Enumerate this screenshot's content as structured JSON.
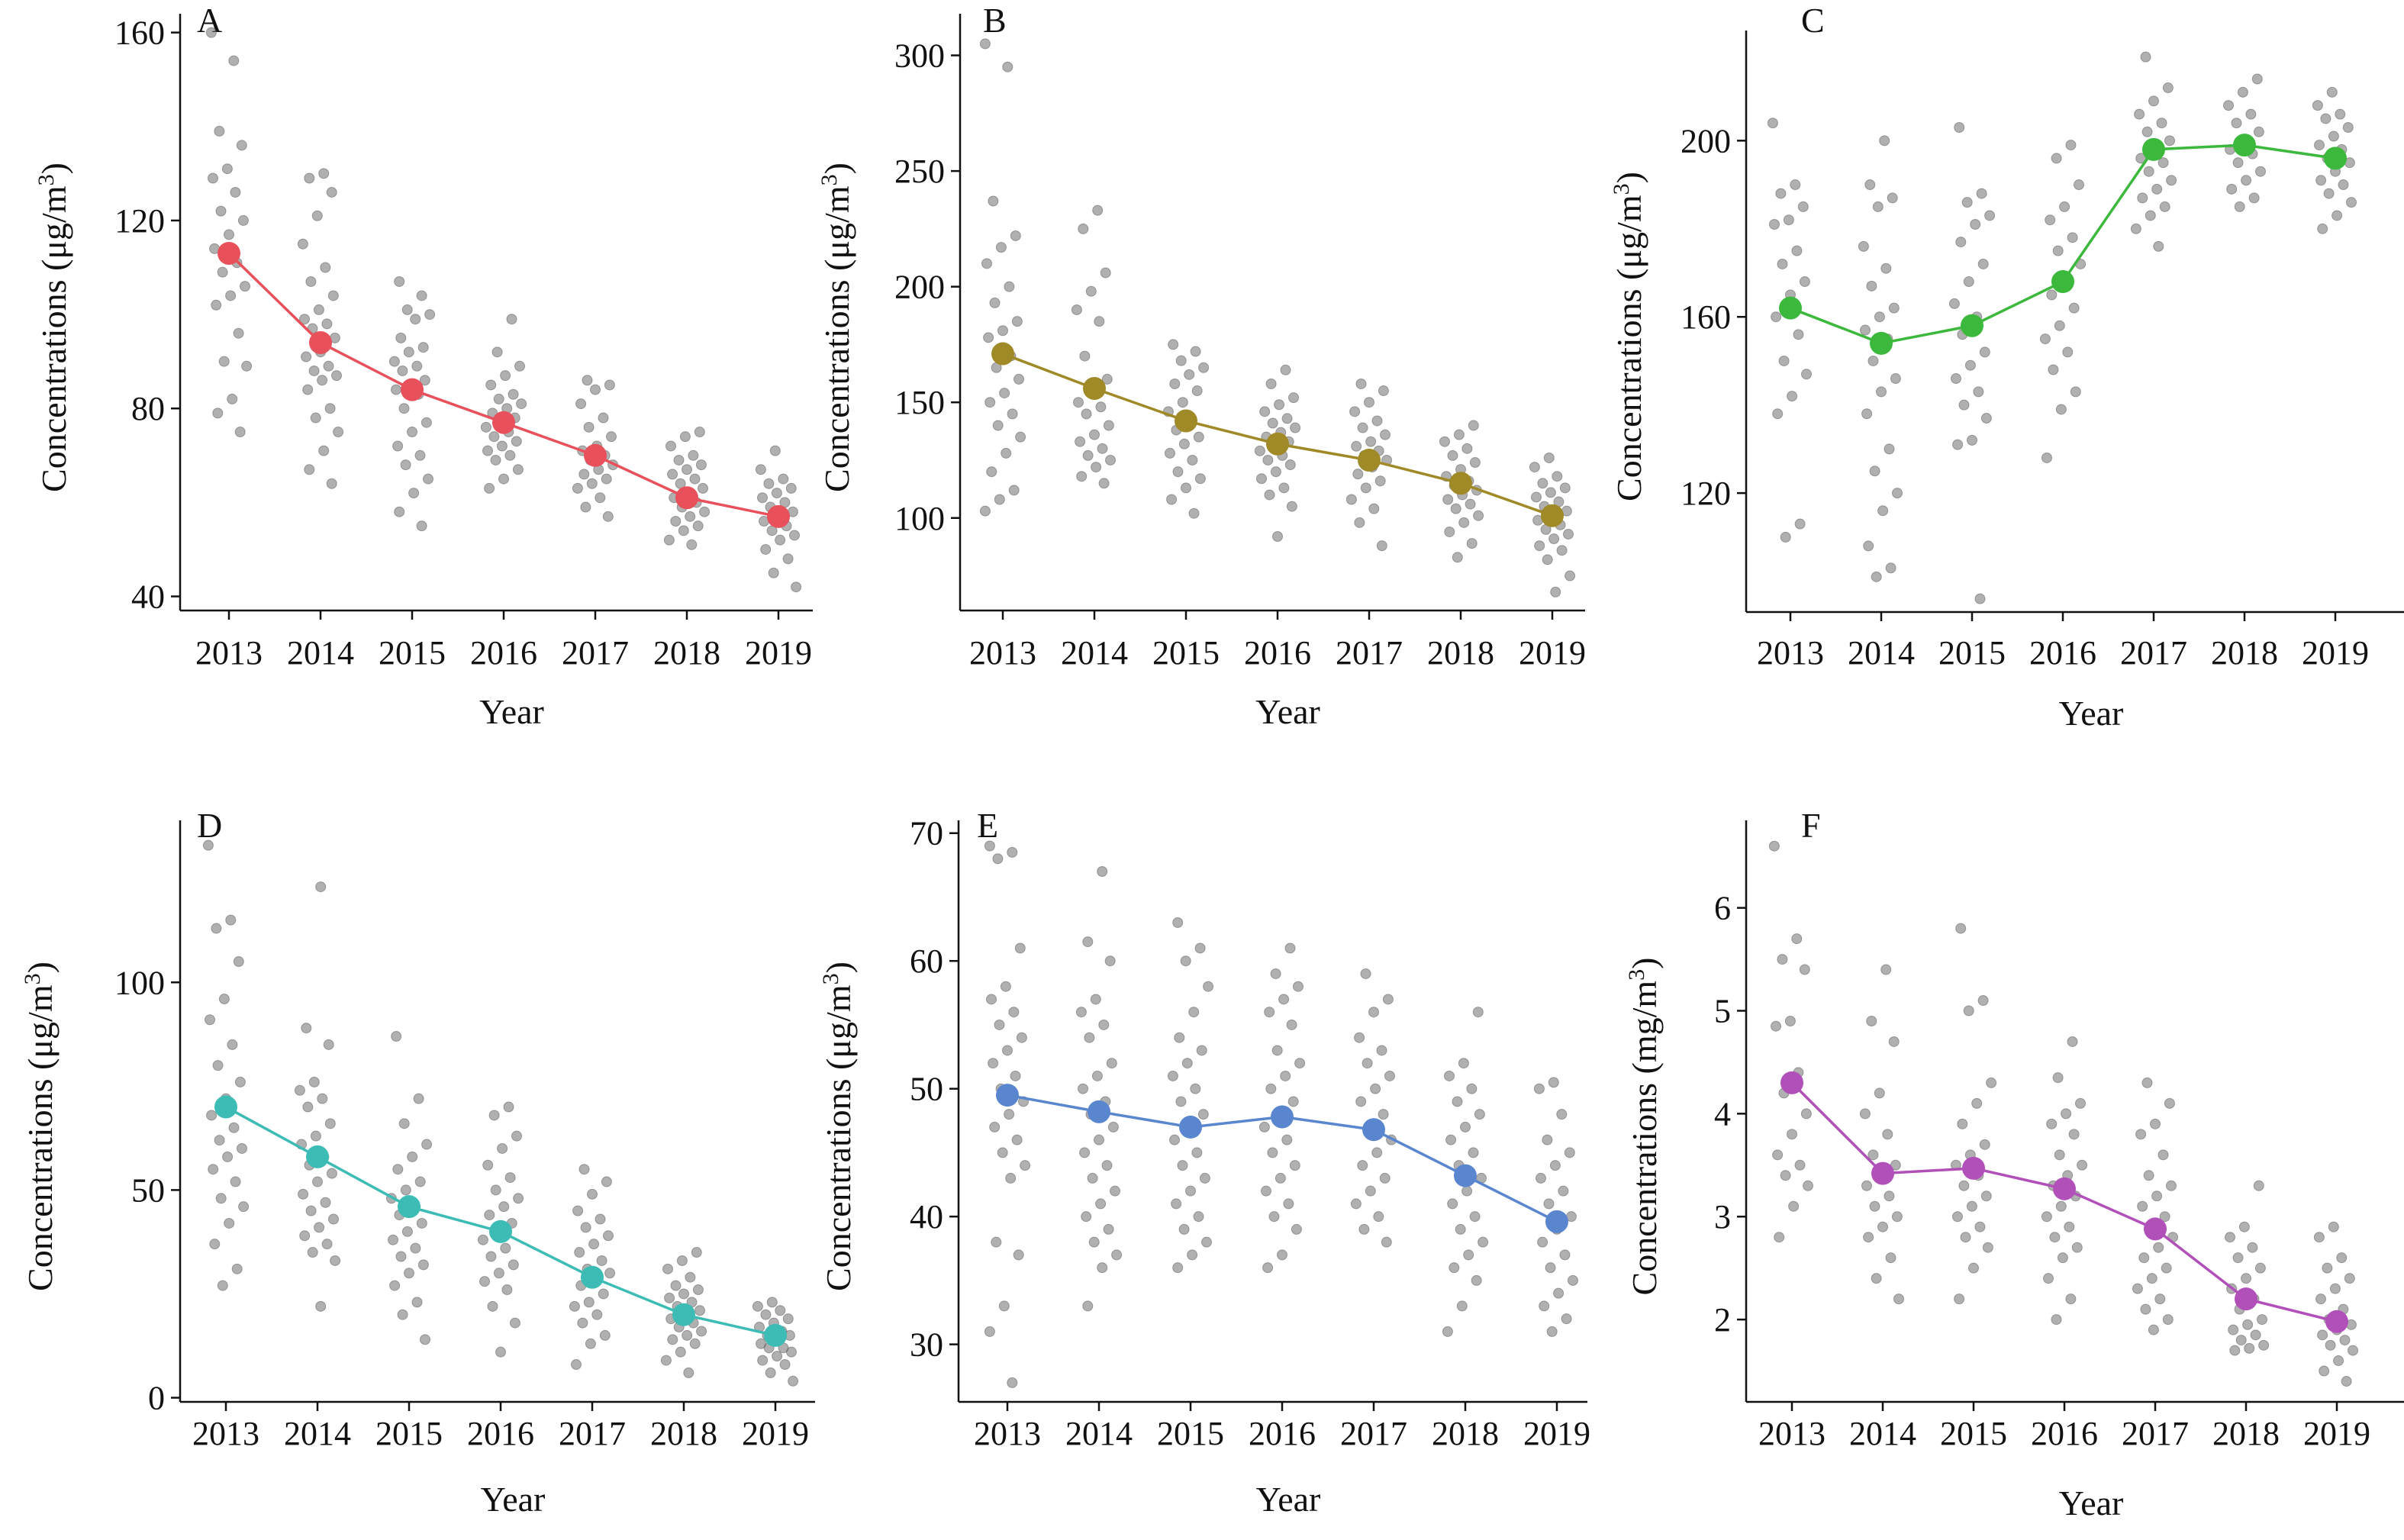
{
  "chart_data": [
    {
      "type": "scatter",
      "panel_label": "A",
      "xlabel": "Year",
      "ylabel": "Concentrations (μg/m",
      "ylabel_sup": "3",
      "ylabel_tail": ")",
      "ylim": [
        37,
        164
      ],
      "yticks": [
        40,
        80,
        120,
        160
      ],
      "x": [
        "2013",
        "2014",
        "2015",
        "2016",
        "2017",
        "2018",
        "2019"
      ],
      "color": "#e8505b",
      "series": [
        {
          "values": [
            113,
            94,
            84,
            77,
            70,
            61,
            57
          ]
        }
      ],
      "points": [
        [
          160,
          154,
          139,
          136,
          131,
          129,
          126,
          122,
          120,
          117,
          114,
          111,
          109,
          106,
          104,
          102,
          96,
          90,
          89,
          82,
          79,
          75
        ],
        [
          130,
          129,
          126,
          121,
          115,
          110,
          107,
          104,
          101,
          99,
          98,
          97,
          95,
          92,
          91,
          89,
          88,
          87,
          86,
          84,
          80,
          78,
          75,
          71,
          67,
          64
        ],
        [
          107,
          104,
          101,
          100,
          99,
          95,
          93,
          92,
          90,
          89,
          88,
          86,
          85,
          84,
          83,
          80,
          77,
          75,
          72,
          70,
          68,
          65,
          62,
          58,
          55
        ],
        [
          99,
          92,
          89,
          87,
          85,
          83,
          82,
          81,
          80,
          79,
          78,
          77,
          76,
          75,
          74,
          73,
          72,
          71,
          70,
          69,
          67,
          65,
          63
        ],
        [
          86,
          85,
          84,
          81,
          78,
          76,
          74,
          72,
          71,
          70,
          69,
          68,
          67,
          66,
          65,
          64,
          63,
          61,
          59,
          57
        ],
        [
          75,
          74,
          72,
          70,
          69,
          68,
          67,
          66,
          65,
          64,
          63,
          62,
          61,
          60,
          59,
          58,
          57,
          56,
          55,
          54,
          52,
          51
        ],
        [
          71,
          67,
          65,
          64,
          63,
          62,
          61,
          60,
          59,
          58,
          57,
          56,
          55,
          54,
          53,
          52,
          50,
          48,
          45,
          42
        ]
      ]
    },
    {
      "type": "scatter",
      "panel_label": "B",
      "xlabel": "Year",
      "ylabel": "Concentrations (μg/m",
      "ylabel_sup": "3",
      "ylabel_tail": ")",
      "ylim": [
        60,
        318
      ],
      "yticks": [
        100,
        150,
        200,
        250,
        300
      ],
      "x": [
        "2013",
        "2014",
        "2015",
        "2016",
        "2017",
        "2018",
        "2019"
      ],
      "color": "#a08a28",
      "series": [
        {
          "values": [
            171,
            156,
            142,
            132,
            125,
            115,
            101
          ]
        }
      ],
      "points": [
        [
          305,
          295,
          237,
          222,
          217,
          210,
          200,
          193,
          185,
          181,
          178,
          170,
          165,
          160,
          154,
          150,
          145,
          140,
          135,
          128,
          120,
          112,
          108,
          103
        ],
        [
          233,
          225,
          206,
          198,
          190,
          185,
          170,
          160,
          155,
          150,
          148,
          145,
          140,
          136,
          133,
          130,
          127,
          125,
          122,
          118,
          115
        ],
        [
          175,
          172,
          168,
          165,
          162,
          158,
          155,
          150,
          146,
          142,
          138,
          135,
          132,
          128,
          125,
          120,
          117,
          113,
          108,
          102
        ],
        [
          164,
          158,
          152,
          149,
          146,
          143,
          141,
          139,
          137,
          135,
          133,
          131,
          129,
          127,
          125,
          123,
          120,
          117,
          113,
          110,
          105,
          92
        ],
        [
          158,
          155,
          150,
          146,
          142,
          139,
          136,
          133,
          131,
          129,
          127,
          125,
          122,
          119,
          116,
          113,
          108,
          104,
          98,
          88
        ],
        [
          140,
          136,
          133,
          130,
          127,
          124,
          121,
          118,
          116,
          114,
          112,
          110,
          108,
          106,
          104,
          101,
          98,
          94,
          89,
          83
        ],
        [
          126,
          122,
          118,
          115,
          113,
          111,
          109,
          107,
          105,
          103,
          101,
          99,
          97,
          95,
          93,
          91,
          88,
          86,
          82,
          75,
          68
        ]
      ]
    },
    {
      "type": "scatter",
      "panel_label": "C",
      "xlabel": "Year",
      "ylabel": "Concentrations (μg/m",
      "ylabel_sup": "3",
      "ylabel_tail": ")",
      "ylim": [
        93,
        225
      ],
      "yticks": [
        120,
        160,
        200
      ],
      "x": [
        "2013",
        "2014",
        "2015",
        "2016",
        "2017",
        "2018",
        "2019"
      ],
      "color": "#3cb83c",
      "series": [
        {
          "values": [
            162,
            154,
            158,
            168,
            198,
            199,
            196
          ]
        }
      ],
      "points": [
        [
          204,
          190,
          188,
          185,
          182,
          181,
          175,
          172,
          168,
          165,
          160,
          156,
          150,
          147,
          142,
          138,
          113,
          110
        ],
        [
          200,
          190,
          187,
          185,
          176,
          171,
          167,
          162,
          160,
          157,
          155,
          150,
          146,
          143,
          138,
          130,
          125,
          120,
          116,
          108,
          103,
          101
        ],
        [
          203,
          188,
          186,
          183,
          181,
          177,
          172,
          168,
          163,
          160,
          156,
          152,
          149,
          146,
          143,
          140,
          137,
          132,
          131,
          96
        ],
        [
          199,
          196,
          190,
          185,
          182,
          178,
          175,
          172,
          168,
          165,
          162,
          158,
          155,
          152,
          148,
          143,
          139,
          128
        ],
        [
          219,
          212,
          209,
          206,
          204,
          202,
          200,
          198,
          196,
          195,
          193,
          191,
          189,
          187,
          185,
          183,
          180,
          176
        ],
        [
          214,
          211,
          208,
          206,
          204,
          202,
          200,
          198,
          197,
          195,
          193,
          191,
          189,
          187,
          185
        ],
        [
          211,
          208,
          206,
          205,
          203,
          201,
          199,
          198,
          196,
          195,
          193,
          191,
          190,
          188,
          186,
          183,
          180
        ]
      ]
    },
    {
      "type": "scatter",
      "panel_label": "D",
      "xlabel": "Year",
      "ylabel": "Concentrations (μg/m",
      "ylabel_sup": "3",
      "ylabel_tail": ")",
      "ylim": [
        -1,
        139
      ],
      "yticks": [
        0,
        50,
        100
      ],
      "x": [
        "2013",
        "2014",
        "2015",
        "2016",
        "2017",
        "2018",
        "2019"
      ],
      "color": "#3cbcb4",
      "series": [
        {
          "values": [
            70,
            58,
            46,
            40,
            29,
            20,
            15
          ]
        }
      ],
      "points": [
        [
          133,
          115,
          113,
          105,
          96,
          91,
          85,
          80,
          76,
          72,
          68,
          65,
          62,
          60,
          58,
          55,
          52,
          48,
          46,
          42,
          37,
          31,
          27
        ],
        [
          123,
          89,
          85,
          76,
          74,
          72,
          70,
          66,
          63,
          61,
          58,
          56,
          54,
          52,
          49,
          47,
          45,
          43,
          41,
          39,
          37,
          35,
          33,
          22
        ],
        [
          87,
          72,
          66,
          61,
          58,
          55,
          52,
          50,
          48,
          46,
          44,
          42,
          40,
          38,
          36,
          34,
          32,
          30,
          27,
          23,
          20,
          14
        ],
        [
          70,
          68,
          63,
          60,
          56,
          53,
          50,
          48,
          46,
          44,
          42,
          40,
          38,
          36,
          34,
          32,
          30,
          28,
          26,
          22,
          18,
          11
        ],
        [
          55,
          52,
          49,
          45,
          43,
          41,
          39,
          37,
          35,
          33,
          31,
          30,
          28,
          27,
          25,
          23,
          22,
          20,
          18,
          15,
          13,
          8
        ],
        [
          35,
          33,
          31,
          29,
          27,
          26,
          25,
          24,
          23,
          22,
          21,
          20,
          19,
          18,
          17,
          16,
          15,
          14,
          13,
          11,
          9,
          6
        ],
        [
          23,
          22,
          21,
          20,
          19,
          18,
          17,
          16,
          15,
          15,
          14,
          13,
          12,
          12,
          11,
          10,
          9,
          8,
          6,
          4
        ]
      ]
    },
    {
      "type": "scatter",
      "panel_label": "E",
      "xlabel": "Year",
      "ylabel": "Concentrations (μg/m",
      "ylabel_sup": "3",
      "ylabel_tail": ")",
      "ylim": [
        25.5,
        71
      ],
      "yticks": [
        30,
        40,
        50,
        60,
        70
      ],
      "x": [
        "2013",
        "2014",
        "2015",
        "2016",
        "2017",
        "2018",
        "2019"
      ],
      "color": "#5a86d0",
      "series": [
        {
          "values": [
            49.5,
            48.2,
            47.0,
            47.8,
            46.8,
            43.2,
            39.6
          ]
        }
      ],
      "points": [
        [
          69,
          68.5,
          68,
          61,
          58,
          57,
          56,
          55,
          54,
          53,
          52,
          51,
          50,
          49,
          48,
          47,
          46,
          45,
          44,
          43,
          38,
          37,
          33,
          31,
          27
        ],
        [
          67,
          61.5,
          60,
          57,
          56,
          55,
          54,
          52,
          51,
          50,
          49,
          48,
          47,
          46,
          45,
          44,
          43,
          42,
          41,
          40,
          39,
          38,
          37,
          36,
          33
        ],
        [
          63,
          61,
          60,
          58,
          56,
          54,
          53,
          52,
          51,
          50,
          49,
          48,
          47,
          46,
          45,
          44,
          43,
          42,
          41,
          40,
          39,
          38,
          37,
          36
        ],
        [
          61,
          59,
          58,
          57,
          56,
          55,
          53,
          52,
          51,
          50,
          49,
          48,
          47,
          46,
          45,
          44,
          43,
          42,
          41,
          40,
          39,
          37,
          36
        ],
        [
          59,
          57,
          56,
          54,
          53,
          52,
          51,
          50,
          49,
          48,
          47,
          46,
          45,
          44,
          43,
          42,
          41,
          40,
          39,
          38
        ],
        [
          56,
          52,
          51,
          50,
          49,
          48,
          47,
          46,
          45,
          44,
          43,
          42,
          41,
          40,
          39,
          38,
          37,
          36,
          35,
          33,
          31
        ],
        [
          50.5,
          50,
          48,
          46,
          45,
          44,
          43,
          42,
          41,
          40,
          39,
          38,
          37,
          36,
          35,
          34,
          33,
          32,
          31
        ]
      ]
    },
    {
      "type": "scatter",
      "panel_label": "F",
      "xlabel": "Year",
      "ylabel": "Concentrations (mg/m",
      "ylabel_sup": "3",
      "ylabel_tail": ")",
      "ylim": [
        1.2,
        6.85
      ],
      "yticks": [
        2,
        3,
        4,
        5,
        6
      ],
      "x": [
        "2013",
        "2014",
        "2015",
        "2016",
        "2017",
        "2018",
        "2019"
      ],
      "color": "#b050b8",
      "series": [
        {
          "values": [
            4.3,
            3.42,
            3.47,
            3.27,
            2.88,
            2.2,
            1.98
          ]
        }
      ],
      "points": [
        [
          6.6,
          5.7,
          5.5,
          5.4,
          4.9,
          4.85,
          4.4,
          4.2,
          4.0,
          3.8,
          3.6,
          3.5,
          3.4,
          3.3,
          3.1,
          2.8
        ],
        [
          5.4,
          4.9,
          4.7,
          4.2,
          4.0,
          3.8,
          3.6,
          3.5,
          3.4,
          3.3,
          3.2,
          3.1,
          3.0,
          2.9,
          2.8,
          2.6,
          2.4,
          2.2
        ],
        [
          5.8,
          5.1,
          5.0,
          4.3,
          4.1,
          3.9,
          3.7,
          3.6,
          3.5,
          3.4,
          3.3,
          3.2,
          3.1,
          3.0,
          2.9,
          2.8,
          2.7,
          2.5,
          2.2
        ],
        [
          4.7,
          4.35,
          4.1,
          4.0,
          3.9,
          3.8,
          3.6,
          3.5,
          3.4,
          3.3,
          3.2,
          3.1,
          3.0,
          2.9,
          2.8,
          2.7,
          2.6,
          2.4,
          2.2,
          2.0
        ],
        [
          4.3,
          4.1,
          3.9,
          3.8,
          3.6,
          3.4,
          3.3,
          3.2,
          3.1,
          3.0,
          2.9,
          2.8,
          2.7,
          2.6,
          2.5,
          2.4,
          2.3,
          2.2,
          2.1,
          2.0,
          1.9
        ],
        [
          3.3,
          2.9,
          2.8,
          2.7,
          2.6,
          2.5,
          2.4,
          2.3,
          2.2,
          2.1,
          2.0,
          1.95,
          1.9,
          1.85,
          1.8,
          1.75,
          1.72,
          1.7
        ],
        [
          2.9,
          2.8,
          2.6,
          2.5,
          2.4,
          2.3,
          2.2,
          2.1,
          2.0,
          1.95,
          1.9,
          1.85,
          1.8,
          1.75,
          1.7,
          1.6,
          1.5,
          1.4
        ]
      ]
    }
  ],
  "colors": {
    "points": "#707070",
    "axis": "#111111"
  }
}
